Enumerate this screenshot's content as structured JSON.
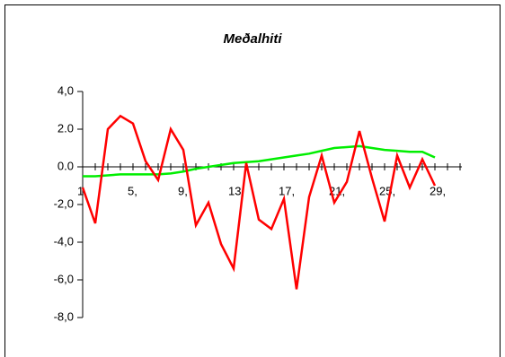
{
  "chart_data": {
    "type": "line",
    "title": "Meðalhiti",
    "categories": [
      "1,",
      null,
      null,
      null,
      "5,",
      null,
      null,
      null,
      "9,",
      null,
      null,
      null,
      "13,",
      null,
      null,
      null,
      "17,",
      null,
      null,
      null,
      "21,",
      null,
      null,
      null,
      "25,",
      null,
      null,
      null,
      "29,"
    ],
    "series": [
      {
        "color": "#ff0000",
        "values": [
          -1.1,
          -3.0,
          2.0,
          2.7,
          2.3,
          0.3,
          -0.7,
          2.0,
          0.9,
          -3.1,
          -1.9,
          -4.1,
          -5.4,
          0.2,
          -2.8,
          -3.3,
          -1.7,
          -6.5,
          -1.6,
          0.6,
          -1.9,
          -0.8,
          1.9,
          -0.6,
          -2.9,
          0.6,
          -1.1,
          0.4,
          -1.0
        ]
      },
      {
        "color": "#00ee00",
        "values": [
          -0.5,
          -0.5,
          -0.45,
          -0.4,
          -0.4,
          -0.4,
          -0.4,
          -0.35,
          -0.25,
          -0.1,
          0.0,
          0.1,
          0.2,
          0.25,
          0.3,
          0.4,
          0.5,
          0.6,
          0.7,
          0.85,
          1.0,
          1.05,
          1.1,
          1.0,
          0.9,
          0.85,
          0.8,
          0.8,
          0.5
        ]
      }
    ],
    "ylim": [
      -8,
      4
    ],
    "yticks": [
      {
        "value": 4,
        "label": "4,0"
      },
      {
        "value": 2,
        "label": "2.0"
      },
      {
        "value": 0,
        "label": "0.0"
      },
      {
        "value": -2,
        "label": "-2,0"
      },
      {
        "value": -4,
        "label": "-4,0"
      },
      {
        "value": -6,
        "label": "-6,0"
      },
      {
        "value": -8,
        "label": "-8,0"
      }
    ]
  }
}
